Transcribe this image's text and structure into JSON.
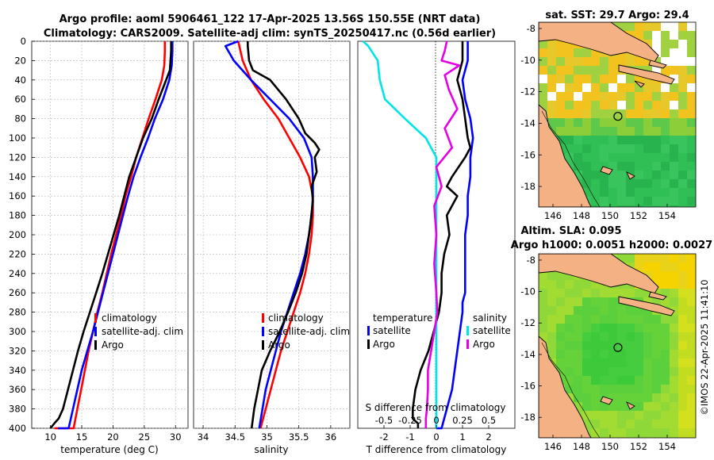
{
  "titles": {
    "line1": "Argo profile: aoml 5906461_122 17-Apr-2025 13.56S 150.55E (NRT data)",
    "line2": "Climatology: CARS2009. Satellite-adj clim: synTS_20250417.nc (0.56d earlier)"
  },
  "colors": {
    "climatology": "#ff0000",
    "satellite": "#0000ff",
    "argo": "#000000",
    "sal_satellite": "#00e5e5",
    "sal_argo": "#e600e6"
  },
  "chart_data": [
    {
      "id": "temperature",
      "type": "line",
      "xlabel": "temperature (deg C)",
      "xlim": [
        7,
        32
      ],
      "xticks": [
        "10",
        "15",
        "20",
        "25",
        "30"
      ],
      "xtick_values": [
        10,
        15,
        20,
        25,
        30
      ],
      "ylim": [
        0,
        400
      ],
      "yticks": [
        "0",
        "20",
        "40",
        "60",
        "80",
        "100",
        "120",
        "140",
        "160",
        "180",
        "200",
        "220",
        "240",
        "260",
        "280",
        "300",
        "320",
        "340",
        "360",
        "380",
        "400"
      ],
      "legend": [
        "climatology",
        "satellite-adj. clim",
        "Argo"
      ],
      "series": [
        {
          "name": "climatology",
          "color_key": "climatology",
          "x": [
            28.3,
            28.3,
            28.2,
            27.8,
            26.8,
            25.7,
            24.7,
            23.7,
            22.9,
            22.0,
            21.3,
            20.5,
            19.7,
            19.0,
            18.3,
            17.5,
            16.8,
            16.1,
            15.5,
            14.9,
            14.3,
            13.7,
            13.2,
            12.7,
            12.1,
            11.6,
            11.0,
            10.6
          ],
          "y": [
            0,
            10,
            25,
            40,
            60,
            80,
            100,
            120,
            140,
            160,
            180,
            200,
            220,
            240,
            260,
            280,
            300,
            320,
            340,
            360,
            380,
            400,
            400,
            400,
            400,
            400,
            400,
            400
          ]
        },
        {
          "name": "satellite-adj. clim",
          "color_key": "satellite",
          "x": [
            29.5,
            29.5,
            29.4,
            29.0,
            28.0,
            26.7,
            25.6,
            24.4,
            23.3,
            22.4,
            21.6,
            20.8,
            20.0,
            19.2,
            18.4,
            17.6,
            16.8,
            15.9,
            15.0,
            14.3,
            13.6,
            12.9,
            12.3,
            11.7,
            11.2
          ],
          "y": [
            0,
            10,
            25,
            40,
            60,
            80,
            100,
            120,
            140,
            160,
            180,
            200,
            220,
            240,
            260,
            280,
            300,
            320,
            340,
            360,
            380,
            400,
            400,
            400,
            400
          ]
        },
        {
          "name": "Argo",
          "color_key": "argo",
          "x": [
            29.3,
            29.3,
            29.2,
            29.1,
            28.2,
            27.3,
            26.2,
            24.8,
            23.7,
            22.6,
            21.8,
            21.0,
            20.1,
            19.2,
            18.3,
            17.3,
            16.3,
            15.3,
            14.4,
            13.6,
            12.8,
            12.0,
            11.3,
            10.6,
            10.0
          ],
          "y": [
            0,
            10,
            20,
            30,
            45,
            60,
            80,
            100,
            120,
            140,
            160,
            180,
            200,
            220,
            240,
            260,
            280,
            300,
            320,
            340,
            360,
            380,
            390,
            395,
            400
          ]
        }
      ]
    },
    {
      "id": "salinity",
      "type": "line",
      "xlabel": "salinity",
      "xlim": [
        33.85,
        36.3
      ],
      "xticks": [
        "34",
        "34.5",
        "35",
        "35.5",
        "36"
      ],
      "xtick_values": [
        34,
        34.5,
        35,
        35.5,
        36
      ],
      "ylim": [
        0,
        400
      ],
      "legend": [
        "climatology",
        "satellite-adj. clim",
        "Argo"
      ],
      "series": [
        {
          "name": "climatology",
          "color_key": "climatology",
          "x": [
            34.55,
            34.62,
            34.75,
            34.95,
            35.18,
            35.35,
            35.52,
            35.66,
            35.72,
            35.72,
            35.7,
            35.66,
            35.6,
            35.52,
            35.42,
            35.32,
            35.22,
            35.14,
            35.06,
            34.98,
            34.9
          ],
          "y": [
            0,
            20,
            40,
            60,
            80,
            100,
            120,
            140,
            160,
            180,
            200,
            220,
            240,
            260,
            280,
            300,
            320,
            340,
            360,
            380,
            400
          ]
        },
        {
          "name": "satellite-adj. clim",
          "color_key": "satellite",
          "x": [
            34.55,
            34.35,
            34.48,
            34.75,
            35.05,
            35.35,
            35.58,
            35.7,
            35.72,
            35.72,
            35.7,
            35.66,
            35.6,
            35.52,
            35.42,
            35.32,
            35.22,
            35.14,
            35.06,
            34.98,
            34.88
          ],
          "y": [
            0,
            5,
            20,
            40,
            60,
            80,
            100,
            120,
            140,
            160,
            180,
            200,
            220,
            240,
            260,
            280,
            300,
            320,
            340,
            360,
            400
          ]
        },
        {
          "name": "Argo",
          "color_key": "argo",
          "x": [
            34.7,
            34.7,
            34.72,
            34.78,
            35.05,
            35.3,
            35.5,
            35.6,
            35.75,
            35.82,
            35.75,
            35.78,
            35.7,
            35.72,
            35.68,
            35.62,
            35.55,
            35.45,
            35.33,
            35.2,
            35.05,
            34.92,
            34.8,
            34.76
          ],
          "y": [
            0,
            5,
            20,
            30,
            40,
            60,
            80,
            95,
            105,
            112,
            120,
            135,
            150,
            165,
            190,
            220,
            240,
            260,
            280,
            300,
            320,
            340,
            380,
            400
          ]
        }
      ]
    },
    {
      "id": "difference",
      "type": "line",
      "xlabel": "T difference from climatology",
      "xlim": [
        -3,
        3
      ],
      "xticks": [
        "-2",
        "-1",
        "0",
        "1",
        "2"
      ],
      "xtick_values": [
        -2,
        -1,
        0,
        1,
        2
      ],
      "top_label": "S difference from climatology",
      "top_ticks": [
        "-0.5",
        "-0.25",
        "0",
        "0.25",
        "0.5"
      ],
      "top_tick_values": [
        -0.5,
        -0.25,
        0,
        0.25,
        0.5
      ],
      "top_xlim": [
        -0.75,
        0.75
      ],
      "ylim": [
        0,
        400
      ],
      "legend_left_title": "temperature",
      "legend_right_title": "salinity",
      "legend_left": [
        "satellite",
        "Argo"
      ],
      "legend_right": [
        "satellite",
        "Argo"
      ],
      "series": [
        {
          "name": "T satellite",
          "color_key": "satellite",
          "x": [
            1.2,
            1.2,
            1.0,
            1.1,
            1.3,
            1.4,
            1.3,
            1.3,
            1.2,
            1.2,
            1.1,
            1.1,
            1.1,
            1.1,
            1.0,
            1.0,
            0.9,
            0.8,
            0.7,
            0.6,
            0.4,
            0.2,
            0.0
          ],
          "y": [
            0,
            20,
            40,
            60,
            80,
            100,
            120,
            140,
            160,
            180,
            200,
            220,
            240,
            260,
            270,
            280,
            300,
            320,
            340,
            360,
            380,
            400,
            400
          ]
        },
        {
          "name": "T Argo",
          "color_key": "argo",
          "x": [
            1.0,
            1.0,
            0.8,
            1.0,
            1.1,
            1.2,
            1.3,
            1.1,
            0.6,
            0.4,
            0.8,
            0.4,
            0.5,
            0.3,
            0.2,
            0.2,
            0.1,
            -0.1,
            -0.3,
            -0.6,
            -0.8,
            -0.9,
            -0.9,
            -0.7,
            -0.7
          ],
          "y": [
            0,
            20,
            40,
            60,
            80,
            100,
            110,
            120,
            140,
            150,
            160,
            180,
            200,
            220,
            240,
            260,
            280,
            300,
            320,
            340,
            360,
            380,
            390,
            395,
            400
          ]
        },
        {
          "name": "S satellite",
          "color_key": "sal_satellite",
          "x": [
            -0.7,
            -0.65,
            -0.56,
            -0.54,
            -0.49,
            -0.3,
            -0.1,
            0.0,
            0.0,
            0.0,
            0.0,
            0.0,
            0.0,
            0.0,
            0.0,
            0.0,
            0.0,
            0.0,
            0.0,
            0.0,
            0.0,
            0.0
          ],
          "y": [
            0,
            5,
            20,
            40,
            60,
            80,
            100,
            120,
            140,
            160,
            180,
            200,
            220,
            240,
            260,
            280,
            300,
            320,
            340,
            360,
            380,
            400
          ]
        },
        {
          "name": "S Argo",
          "color_key": "sal_argo",
          "x": [
            0.1,
            0.08,
            0.05,
            0.22,
            0.08,
            0.12,
            0.2,
            0.08,
            0.15,
            0.0,
            0.05,
            -0.02,
            0.0,
            -0.02,
            0.0,
            0.01,
            -0.02,
            -0.05,
            -0.08,
            -0.08,
            -0.09,
            -0.1,
            -0.1
          ],
          "y": [
            0,
            10,
            20,
            25,
            35,
            50,
            70,
            90,
            110,
            130,
            150,
            170,
            200,
            230,
            260,
            280,
            300,
            320,
            340,
            360,
            380,
            390,
            400
          ]
        }
      ]
    },
    {
      "id": "sst_map",
      "type": "heatmap",
      "title": "sat. SST: 29.7 Argo: 29.4",
      "xticks": [
        "146",
        "148",
        "150",
        "152",
        "154"
      ],
      "xtick_values": [
        146,
        148,
        150,
        152,
        154
      ],
      "yticks": [
        "-8",
        "-10",
        "-12",
        "-14",
        "-16",
        "-18"
      ],
      "ytick_values": [
        -8,
        -10,
        -12,
        -14,
        -16,
        -18
      ],
      "xlim": [
        145,
        156
      ],
      "ylim": [
        -19.3,
        -7.6
      ],
      "marker": [
        150.55,
        -13.56
      ]
    },
    {
      "id": "sla_map",
      "type": "heatmap",
      "title_line1": "Altim. SLA: 0.095",
      "title_line2": "Argo h1000: 0.0051 h2000: 0.0027",
      "xticks": [
        "146",
        "148",
        "150",
        "152",
        "154"
      ],
      "xtick_values": [
        146,
        148,
        150,
        152,
        154
      ],
      "yticks": [
        "-8",
        "-10",
        "-12",
        "-14",
        "-16",
        "-18"
      ],
      "ytick_values": [
        -8,
        -10,
        -12,
        -14,
        -16,
        -18
      ],
      "xlim": [
        145,
        156
      ],
      "ylim": [
        -19.3,
        -7.6
      ],
      "marker": [
        150.55,
        -13.56
      ]
    }
  ],
  "watermark": "©IMOS 22-Apr-2025 11:41:10"
}
